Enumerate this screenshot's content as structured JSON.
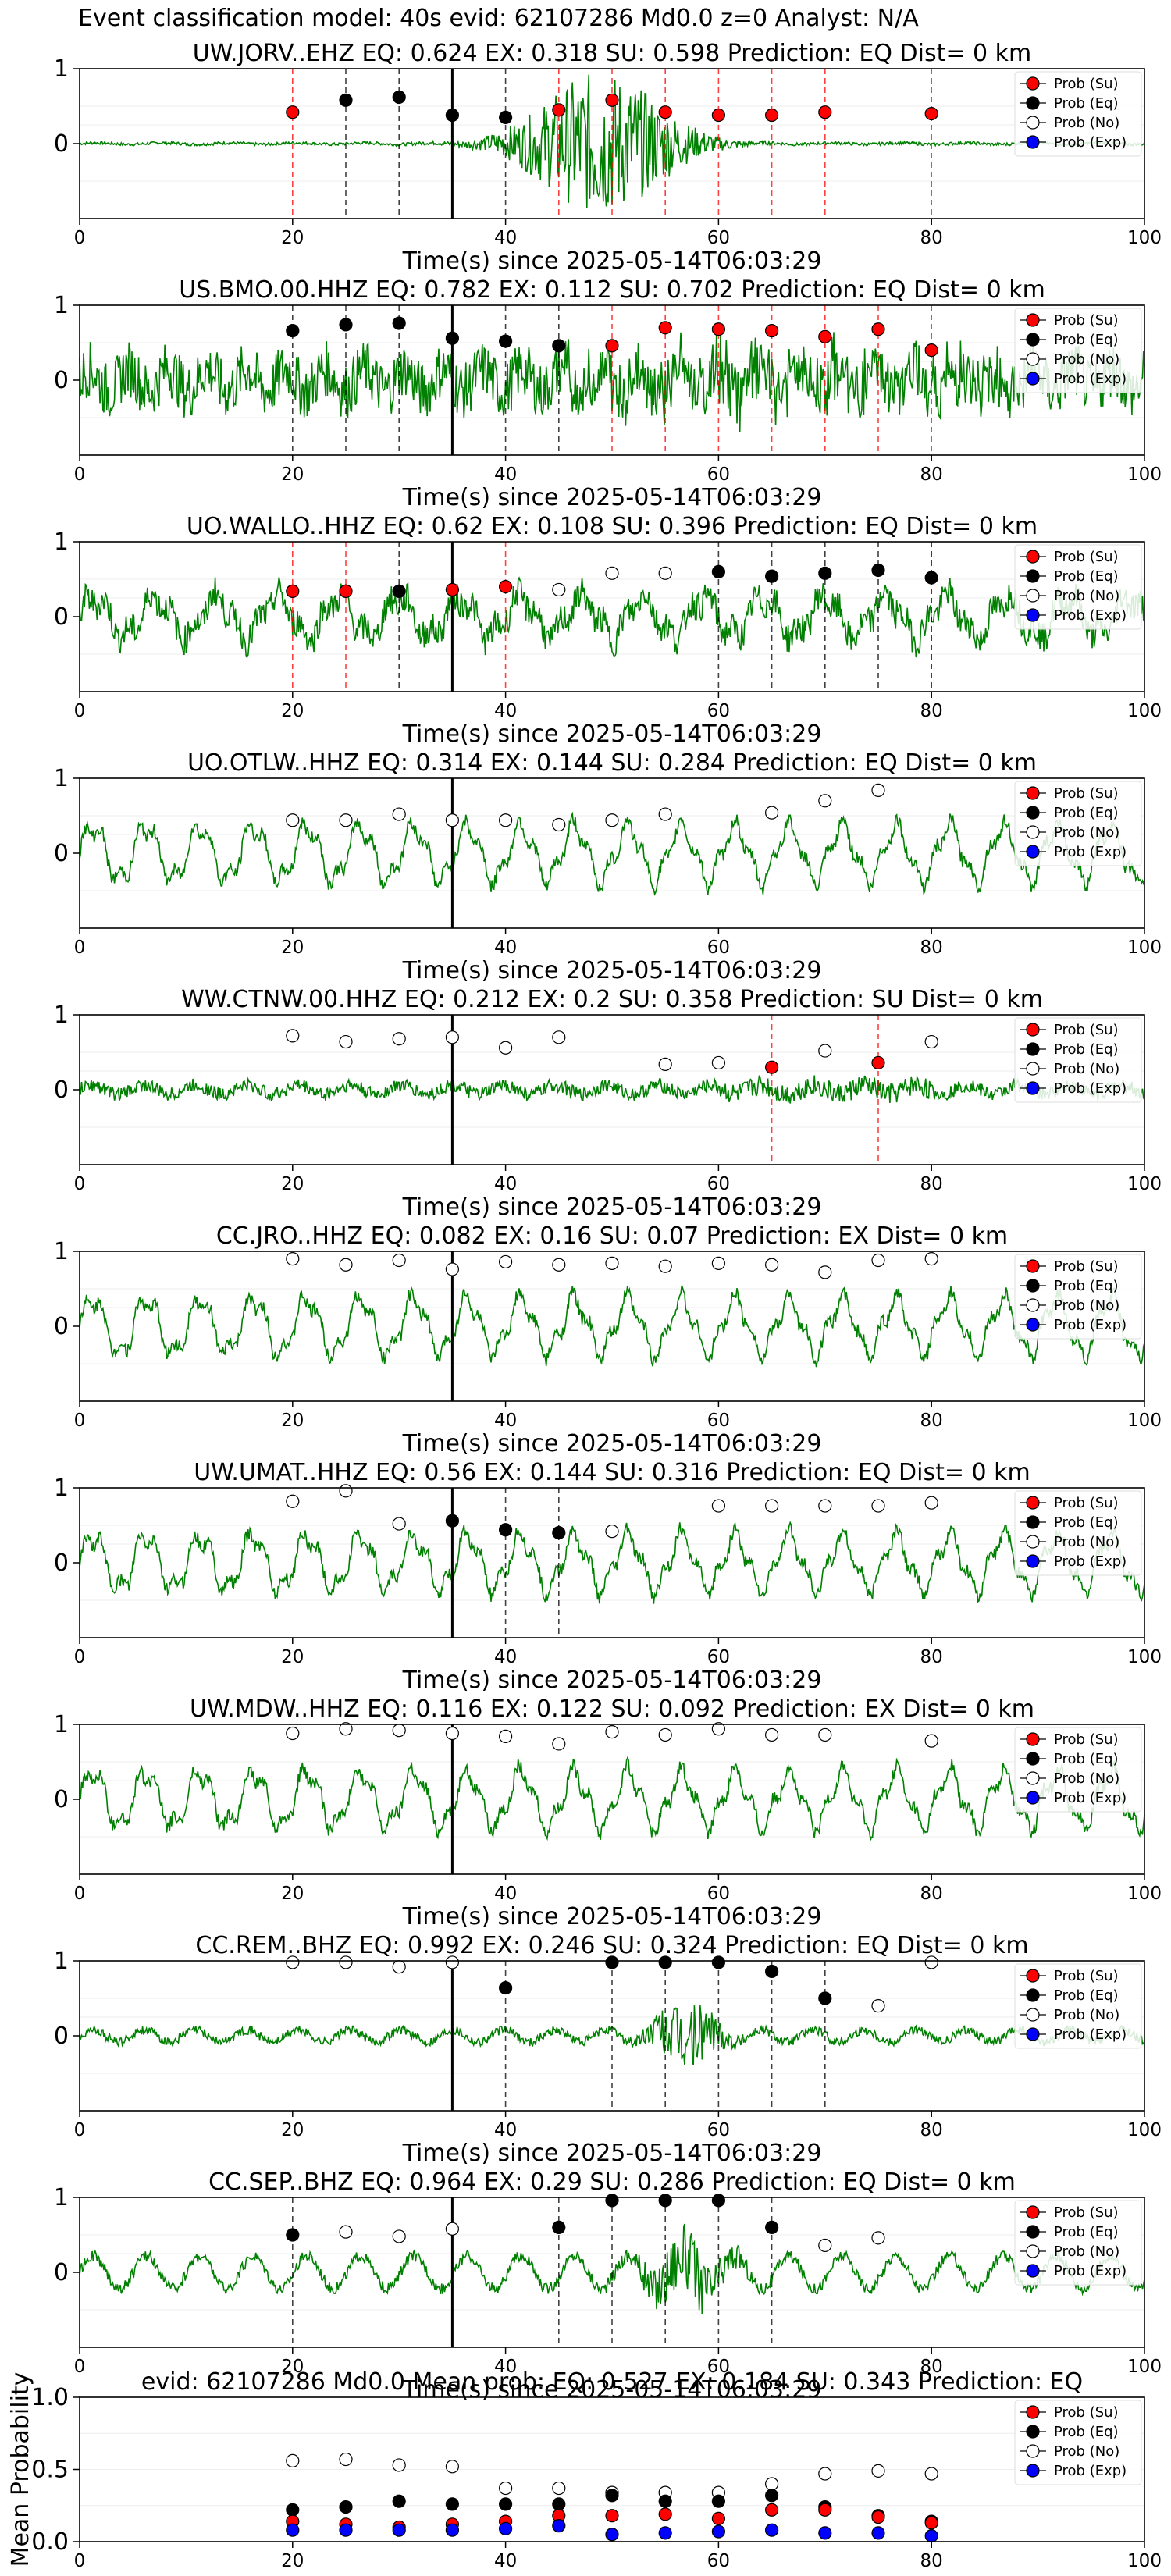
{
  "figure_title": "Event classification model: 40s evid: 62107286 Md0.0 z=0 Analyst: N/A",
  "chart_data": {
    "type": "scatter",
    "legend_placement": "top-right",
    "legend": [
      "Prob (Su)",
      "Prob (Eq)",
      "Prob (No)",
      "Prob (Exp)"
    ],
    "colors": {
      "su": "#ff0000",
      "eq": "#000000",
      "no": "#ffffff",
      "exp": "#0000ff",
      "waveform": "#008000",
      "vline_su": "#ff0000",
      "vline_eq": "#000000"
    },
    "xlim": [
      0,
      100
    ],
    "x_ticks": [
      "0",
      "20",
      "40",
      "60",
      "80",
      "100"
    ],
    "window_line_x": 35,
    "panels": [
      {
        "title": "UW.JORV..EHZ   EQ: 0.624  EX: 0.318  SU: 0.598   Prediction: EQ    Dist= 0 km",
        "xlabel": "Time(s) since 2025-05-14T06:03:29",
        "y_ticks": [
          "1",
          "0"
        ],
        "ylim": [
          -1,
          1
        ],
        "waveform": "burst",
        "points": [
          {
            "x": 20,
            "y": 0.42,
            "c": "su",
            "line": "su"
          },
          {
            "x": 25,
            "y": 0.58,
            "c": "eq",
            "line": "eq"
          },
          {
            "x": 30,
            "y": 0.62,
            "c": "eq",
            "line": "eq"
          },
          {
            "x": 35,
            "y": 0.38,
            "c": "eq",
            "line": "eq"
          },
          {
            "x": 40,
            "y": 0.35,
            "c": "eq",
            "line": "eq"
          },
          {
            "x": 45,
            "y": 0.45,
            "c": "su",
            "line": "su"
          },
          {
            "x": 50,
            "y": 0.58,
            "c": "su",
            "line": "su"
          },
          {
            "x": 55,
            "y": 0.42,
            "c": "su",
            "line": "su"
          },
          {
            "x": 60,
            "y": 0.38,
            "c": "su",
            "line": "su"
          },
          {
            "x": 65,
            "y": 0.38,
            "c": "su",
            "line": "su"
          },
          {
            "x": 70,
            "y": 0.42,
            "c": "su",
            "line": "su"
          },
          {
            "x": 80,
            "y": 0.4,
            "c": "su",
            "line": "su"
          }
        ]
      },
      {
        "title": "US.BMO.00.HHZ   EQ: 0.782  EX: 0.112  SU: 0.702   Prediction: EQ    Dist= 0 km",
        "xlabel": "Time(s) since 2025-05-14T06:03:29",
        "y_ticks": [
          "1",
          "0"
        ],
        "ylim": [
          -1,
          1
        ],
        "waveform": "noisy",
        "points": [
          {
            "x": 20,
            "y": 0.66,
            "c": "eq",
            "line": "eq"
          },
          {
            "x": 25,
            "y": 0.74,
            "c": "eq",
            "line": "eq"
          },
          {
            "x": 30,
            "y": 0.76,
            "c": "eq",
            "line": "eq"
          },
          {
            "x": 35,
            "y": 0.56,
            "c": "eq",
            "line": "eq"
          },
          {
            "x": 40,
            "y": 0.52,
            "c": "eq",
            "line": "eq"
          },
          {
            "x": 45,
            "y": 0.46,
            "c": "eq",
            "line": "eq"
          },
          {
            "x": 50,
            "y": 0.46,
            "c": "su",
            "line": "su"
          },
          {
            "x": 55,
            "y": 0.7,
            "c": "su",
            "line": "su"
          },
          {
            "x": 60,
            "y": 0.68,
            "c": "su",
            "line": "su"
          },
          {
            "x": 65,
            "y": 0.66,
            "c": "su",
            "line": "su"
          },
          {
            "x": 70,
            "y": 0.58,
            "c": "su",
            "line": "su"
          },
          {
            "x": 75,
            "y": 0.68,
            "c": "su",
            "line": "su"
          },
          {
            "x": 80,
            "y": 0.4,
            "c": "su",
            "line": "su"
          }
        ]
      },
      {
        "title": "UO.WALLO..HHZ   EQ: 0.62  EX: 0.108  SU: 0.396   Prediction: EQ    Dist= 0 km",
        "xlabel": "Time(s) since 2025-05-14T06:03:29",
        "y_ticks": [
          "1",
          "0"
        ],
        "ylim": [
          -1,
          1
        ],
        "waveform": "medium",
        "points": [
          {
            "x": 20,
            "y": 0.34,
            "c": "su",
            "line": "su"
          },
          {
            "x": 25,
            "y": 0.34,
            "c": "su",
            "line": "su"
          },
          {
            "x": 30,
            "y": 0.34,
            "c": "eq",
            "line": "eq"
          },
          {
            "x": 35,
            "y": 0.36,
            "c": "su",
            "line": "su"
          },
          {
            "x": 40,
            "y": 0.4,
            "c": "su",
            "line": "su"
          },
          {
            "x": 45,
            "y": 0.36,
            "c": "no"
          },
          {
            "x": 50,
            "y": 0.58,
            "c": "no"
          },
          {
            "x": 55,
            "y": 0.58,
            "c": "no"
          },
          {
            "x": 60,
            "y": 0.6,
            "c": "eq",
            "line": "eq"
          },
          {
            "x": 65,
            "y": 0.54,
            "c": "eq",
            "line": "eq"
          },
          {
            "x": 70,
            "y": 0.58,
            "c": "eq",
            "line": "eq"
          },
          {
            "x": 75,
            "y": 0.62,
            "c": "eq",
            "line": "eq"
          },
          {
            "x": 80,
            "y": 0.52,
            "c": "eq",
            "line": "eq"
          }
        ]
      },
      {
        "title": "UO.OTLW..HHZ   EQ: 0.314  EX: 0.144  SU: 0.284   Prediction: EQ    Dist= 0 km",
        "xlabel": "Time(s) since 2025-05-14T06:03:29",
        "y_ticks": [
          "1",
          "0"
        ],
        "ylim": [
          -1,
          1
        ],
        "waveform": "wavy",
        "points": [
          {
            "x": 20,
            "y": 0.44,
            "c": "no"
          },
          {
            "x": 25,
            "y": 0.44,
            "c": "no"
          },
          {
            "x": 30,
            "y": 0.52,
            "c": "no"
          },
          {
            "x": 35,
            "y": 0.44,
            "c": "no"
          },
          {
            "x": 40,
            "y": 0.44,
            "c": "no"
          },
          {
            "x": 45,
            "y": 0.38,
            "c": "no"
          },
          {
            "x": 50,
            "y": 0.44,
            "c": "no"
          },
          {
            "x": 55,
            "y": 0.52,
            "c": "no"
          },
          {
            "x": 65,
            "y": 0.54,
            "c": "no"
          },
          {
            "x": 70,
            "y": 0.7,
            "c": "no"
          },
          {
            "x": 75,
            "y": 0.84,
            "c": "no"
          }
        ]
      },
      {
        "title": "WW.CTNW.00.HHZ   EQ: 0.212  EX: 0.2  SU: 0.358   Prediction: SU    Dist= 0 km",
        "xlabel": "Time(s) since 2025-05-14T06:03:29",
        "y_ticks": [
          "1",
          "0"
        ],
        "ylim": [
          -1,
          1
        ],
        "waveform": "quiet",
        "points": [
          {
            "x": 20,
            "y": 0.72,
            "c": "no"
          },
          {
            "x": 25,
            "y": 0.64,
            "c": "no"
          },
          {
            "x": 30,
            "y": 0.68,
            "c": "no"
          },
          {
            "x": 35,
            "y": 0.7,
            "c": "no"
          },
          {
            "x": 40,
            "y": 0.56,
            "c": "no"
          },
          {
            "x": 45,
            "y": 0.7,
            "c": "no"
          },
          {
            "x": 55,
            "y": 0.34,
            "c": "no"
          },
          {
            "x": 60,
            "y": 0.36,
            "c": "no"
          },
          {
            "x": 65,
            "y": 0.3,
            "c": "su",
            "line": "su"
          },
          {
            "x": 70,
            "y": 0.52,
            "c": "no"
          },
          {
            "x": 75,
            "y": 0.36,
            "c": "su",
            "line": "su"
          },
          {
            "x": 80,
            "y": 0.64,
            "c": "no"
          }
        ]
      },
      {
        "title": "CC.JRO..HHZ   EQ: 0.082  EX: 0.16  SU: 0.07   Prediction: EX    Dist= 0 km",
        "xlabel": "Time(s) since 2025-05-14T06:03:29",
        "y_ticks": [
          "1",
          "0"
        ],
        "ylim": [
          -1,
          1
        ],
        "waveform": "wavy",
        "points": [
          {
            "x": 20,
            "y": 0.9,
            "c": "no"
          },
          {
            "x": 25,
            "y": 0.82,
            "c": "no"
          },
          {
            "x": 30,
            "y": 0.88,
            "c": "no"
          },
          {
            "x": 35,
            "y": 0.76,
            "c": "no"
          },
          {
            "x": 40,
            "y": 0.86,
            "c": "no"
          },
          {
            "x": 45,
            "y": 0.82,
            "c": "no"
          },
          {
            "x": 50,
            "y": 0.84,
            "c": "no"
          },
          {
            "x": 55,
            "y": 0.8,
            "c": "no"
          },
          {
            "x": 60,
            "y": 0.84,
            "c": "no"
          },
          {
            "x": 65,
            "y": 0.82,
            "c": "no"
          },
          {
            "x": 70,
            "y": 0.72,
            "c": "no"
          },
          {
            "x": 75,
            "y": 0.88,
            "c": "no"
          },
          {
            "x": 80,
            "y": 0.9,
            "c": "no"
          }
        ]
      },
      {
        "title": "UW.UMAT..HHZ   EQ: 0.56  EX: 0.144  SU: 0.316   Prediction: EQ    Dist= 0 km",
        "xlabel": "Time(s) since 2025-05-14T06:03:29",
        "y_ticks": [
          "1",
          "0"
        ],
        "ylim": [
          -1,
          1
        ],
        "waveform": "wavy",
        "points": [
          {
            "x": 20,
            "y": 0.82,
            "c": "no"
          },
          {
            "x": 25,
            "y": 0.96,
            "c": "no"
          },
          {
            "x": 30,
            "y": 0.52,
            "c": "no"
          },
          {
            "x": 35,
            "y": 0.56,
            "c": "eq",
            "line": "eq"
          },
          {
            "x": 40,
            "y": 0.44,
            "c": "eq",
            "line": "eq"
          },
          {
            "x": 45,
            "y": 0.4,
            "c": "eq",
            "line": "eq"
          },
          {
            "x": 50,
            "y": 0.42,
            "c": "no"
          },
          {
            "x": 60,
            "y": 0.76,
            "c": "no"
          },
          {
            "x": 65,
            "y": 0.76,
            "c": "no"
          },
          {
            "x": 70,
            "y": 0.76,
            "c": "no"
          },
          {
            "x": 75,
            "y": 0.76,
            "c": "no"
          },
          {
            "x": 80,
            "y": 0.8,
            "c": "no"
          }
        ]
      },
      {
        "title": "UW.MDW..HHZ   EQ: 0.116  EX: 0.122  SU: 0.092   Prediction: EX    Dist= 0 km",
        "xlabel": "Time(s) since 2025-05-14T06:03:29",
        "y_ticks": [
          "1",
          "0"
        ],
        "ylim": [
          -1,
          1
        ],
        "waveform": "wavy",
        "points": [
          {
            "x": 20,
            "y": 0.88,
            "c": "no"
          },
          {
            "x": 25,
            "y": 0.94,
            "c": "no"
          },
          {
            "x": 30,
            "y": 0.92,
            "c": "no"
          },
          {
            "x": 35,
            "y": 0.88,
            "c": "no"
          },
          {
            "x": 40,
            "y": 0.84,
            "c": "no"
          },
          {
            "x": 45,
            "y": 0.74,
            "c": "no"
          },
          {
            "x": 50,
            "y": 0.9,
            "c": "no"
          },
          {
            "x": 55,
            "y": 0.86,
            "c": "no"
          },
          {
            "x": 60,
            "y": 0.94,
            "c": "no"
          },
          {
            "x": 65,
            "y": 0.86,
            "c": "no"
          },
          {
            "x": 70,
            "y": 0.86,
            "c": "no"
          },
          {
            "x": 80,
            "y": 0.78,
            "c": "no"
          }
        ]
      },
      {
        "title": "CC.REM..BHZ   EQ: 0.992  EX: 0.246  SU: 0.324   Prediction: EQ    Dist= 0 km",
        "xlabel": "Time(s) since 2025-05-14T06:03:29",
        "y_ticks": [
          "1",
          "0"
        ],
        "ylim": [
          -1,
          1
        ],
        "waveform": "quietburst",
        "points": [
          {
            "x": 20,
            "y": 0.98,
            "c": "no"
          },
          {
            "x": 25,
            "y": 0.98,
            "c": "no"
          },
          {
            "x": 30,
            "y": 0.92,
            "c": "no"
          },
          {
            "x": 35,
            "y": 0.98,
            "c": "no"
          },
          {
            "x": 40,
            "y": 0.64,
            "c": "eq",
            "line": "eq"
          },
          {
            "x": 50,
            "y": 0.98,
            "c": "eq",
            "line": "eq"
          },
          {
            "x": 55,
            "y": 0.98,
            "c": "eq",
            "line": "eq"
          },
          {
            "x": 60,
            "y": 0.98,
            "c": "eq",
            "line": "eq"
          },
          {
            "x": 65,
            "y": 0.86,
            "c": "eq",
            "line": "eq"
          },
          {
            "x": 70,
            "y": 0.5,
            "c": "eq",
            "line": "eq"
          },
          {
            "x": 75,
            "y": 0.4,
            "c": "no"
          },
          {
            "x": 80,
            "y": 0.98,
            "c": "no"
          }
        ]
      },
      {
        "title": "CC.SEP..BHZ   EQ: 0.964  EX: 0.29  SU: 0.286   Prediction: EQ    Dist= 0 km",
        "xlabel": "Time(s) since 2025-05-14T06:03:29",
        "y_ticks": [
          "1",
          "0"
        ],
        "ylim": [
          -1,
          1
        ],
        "waveform": "wavyburst",
        "points": [
          {
            "x": 20,
            "y": 0.5,
            "c": "eq",
            "line": "eq"
          },
          {
            "x": 25,
            "y": 0.54,
            "c": "no"
          },
          {
            "x": 30,
            "y": 0.48,
            "c": "no"
          },
          {
            "x": 35,
            "y": 0.58,
            "c": "no"
          },
          {
            "x": 45,
            "y": 0.6,
            "c": "eq",
            "line": "eq"
          },
          {
            "x": 50,
            "y": 0.96,
            "c": "eq",
            "line": "eq"
          },
          {
            "x": 55,
            "y": 0.96,
            "c": "eq",
            "line": "eq"
          },
          {
            "x": 60,
            "y": 0.96,
            "c": "eq",
            "line": "eq"
          },
          {
            "x": 65,
            "y": 0.6,
            "c": "eq",
            "line": "eq"
          },
          {
            "x": 70,
            "y": 0.36,
            "c": "no"
          },
          {
            "x": 75,
            "y": 0.46,
            "c": "no"
          }
        ]
      }
    ],
    "mean_panel": {
      "title": "evid: 62107286  Md0.0   Mean prob:   EQ: 0.527  EX: 0.184  SU: 0.343   Prediction: EQ",
      "ylabel": "Mean Probability",
      "ylim": [
        0,
        1
      ],
      "y_ticks": [
        "1.0",
        "0.5",
        "0.0"
      ],
      "x": [
        20,
        25,
        30,
        35,
        40,
        45,
        50,
        55,
        60,
        65,
        70,
        75,
        80
      ],
      "series": [
        {
          "name": "Prob (No)",
          "c": "no",
          "values": [
            0.56,
            0.57,
            0.53,
            0.52,
            0.37,
            0.37,
            0.34,
            0.34,
            0.34,
            0.4,
            0.47,
            0.49,
            0.47
          ]
        },
        {
          "name": "Prob (Eq)",
          "c": "eq",
          "values": [
            0.22,
            0.24,
            0.28,
            0.26,
            0.26,
            0.26,
            0.32,
            0.28,
            0.28,
            0.32,
            0.24,
            0.18,
            0.14
          ]
        },
        {
          "name": "Prob (Su)",
          "c": "su",
          "values": [
            0.14,
            0.12,
            0.1,
            0.12,
            0.14,
            0.18,
            0.18,
            0.19,
            0.16,
            0.22,
            0.22,
            0.17,
            0.13
          ]
        },
        {
          "name": "Prob (Exp)",
          "c": "exp",
          "values": [
            0.08,
            0.08,
            0.08,
            0.08,
            0.09,
            0.11,
            0.05,
            0.06,
            0.07,
            0.08,
            0.06,
            0.06,
            0.04
          ]
        }
      ]
    }
  }
}
